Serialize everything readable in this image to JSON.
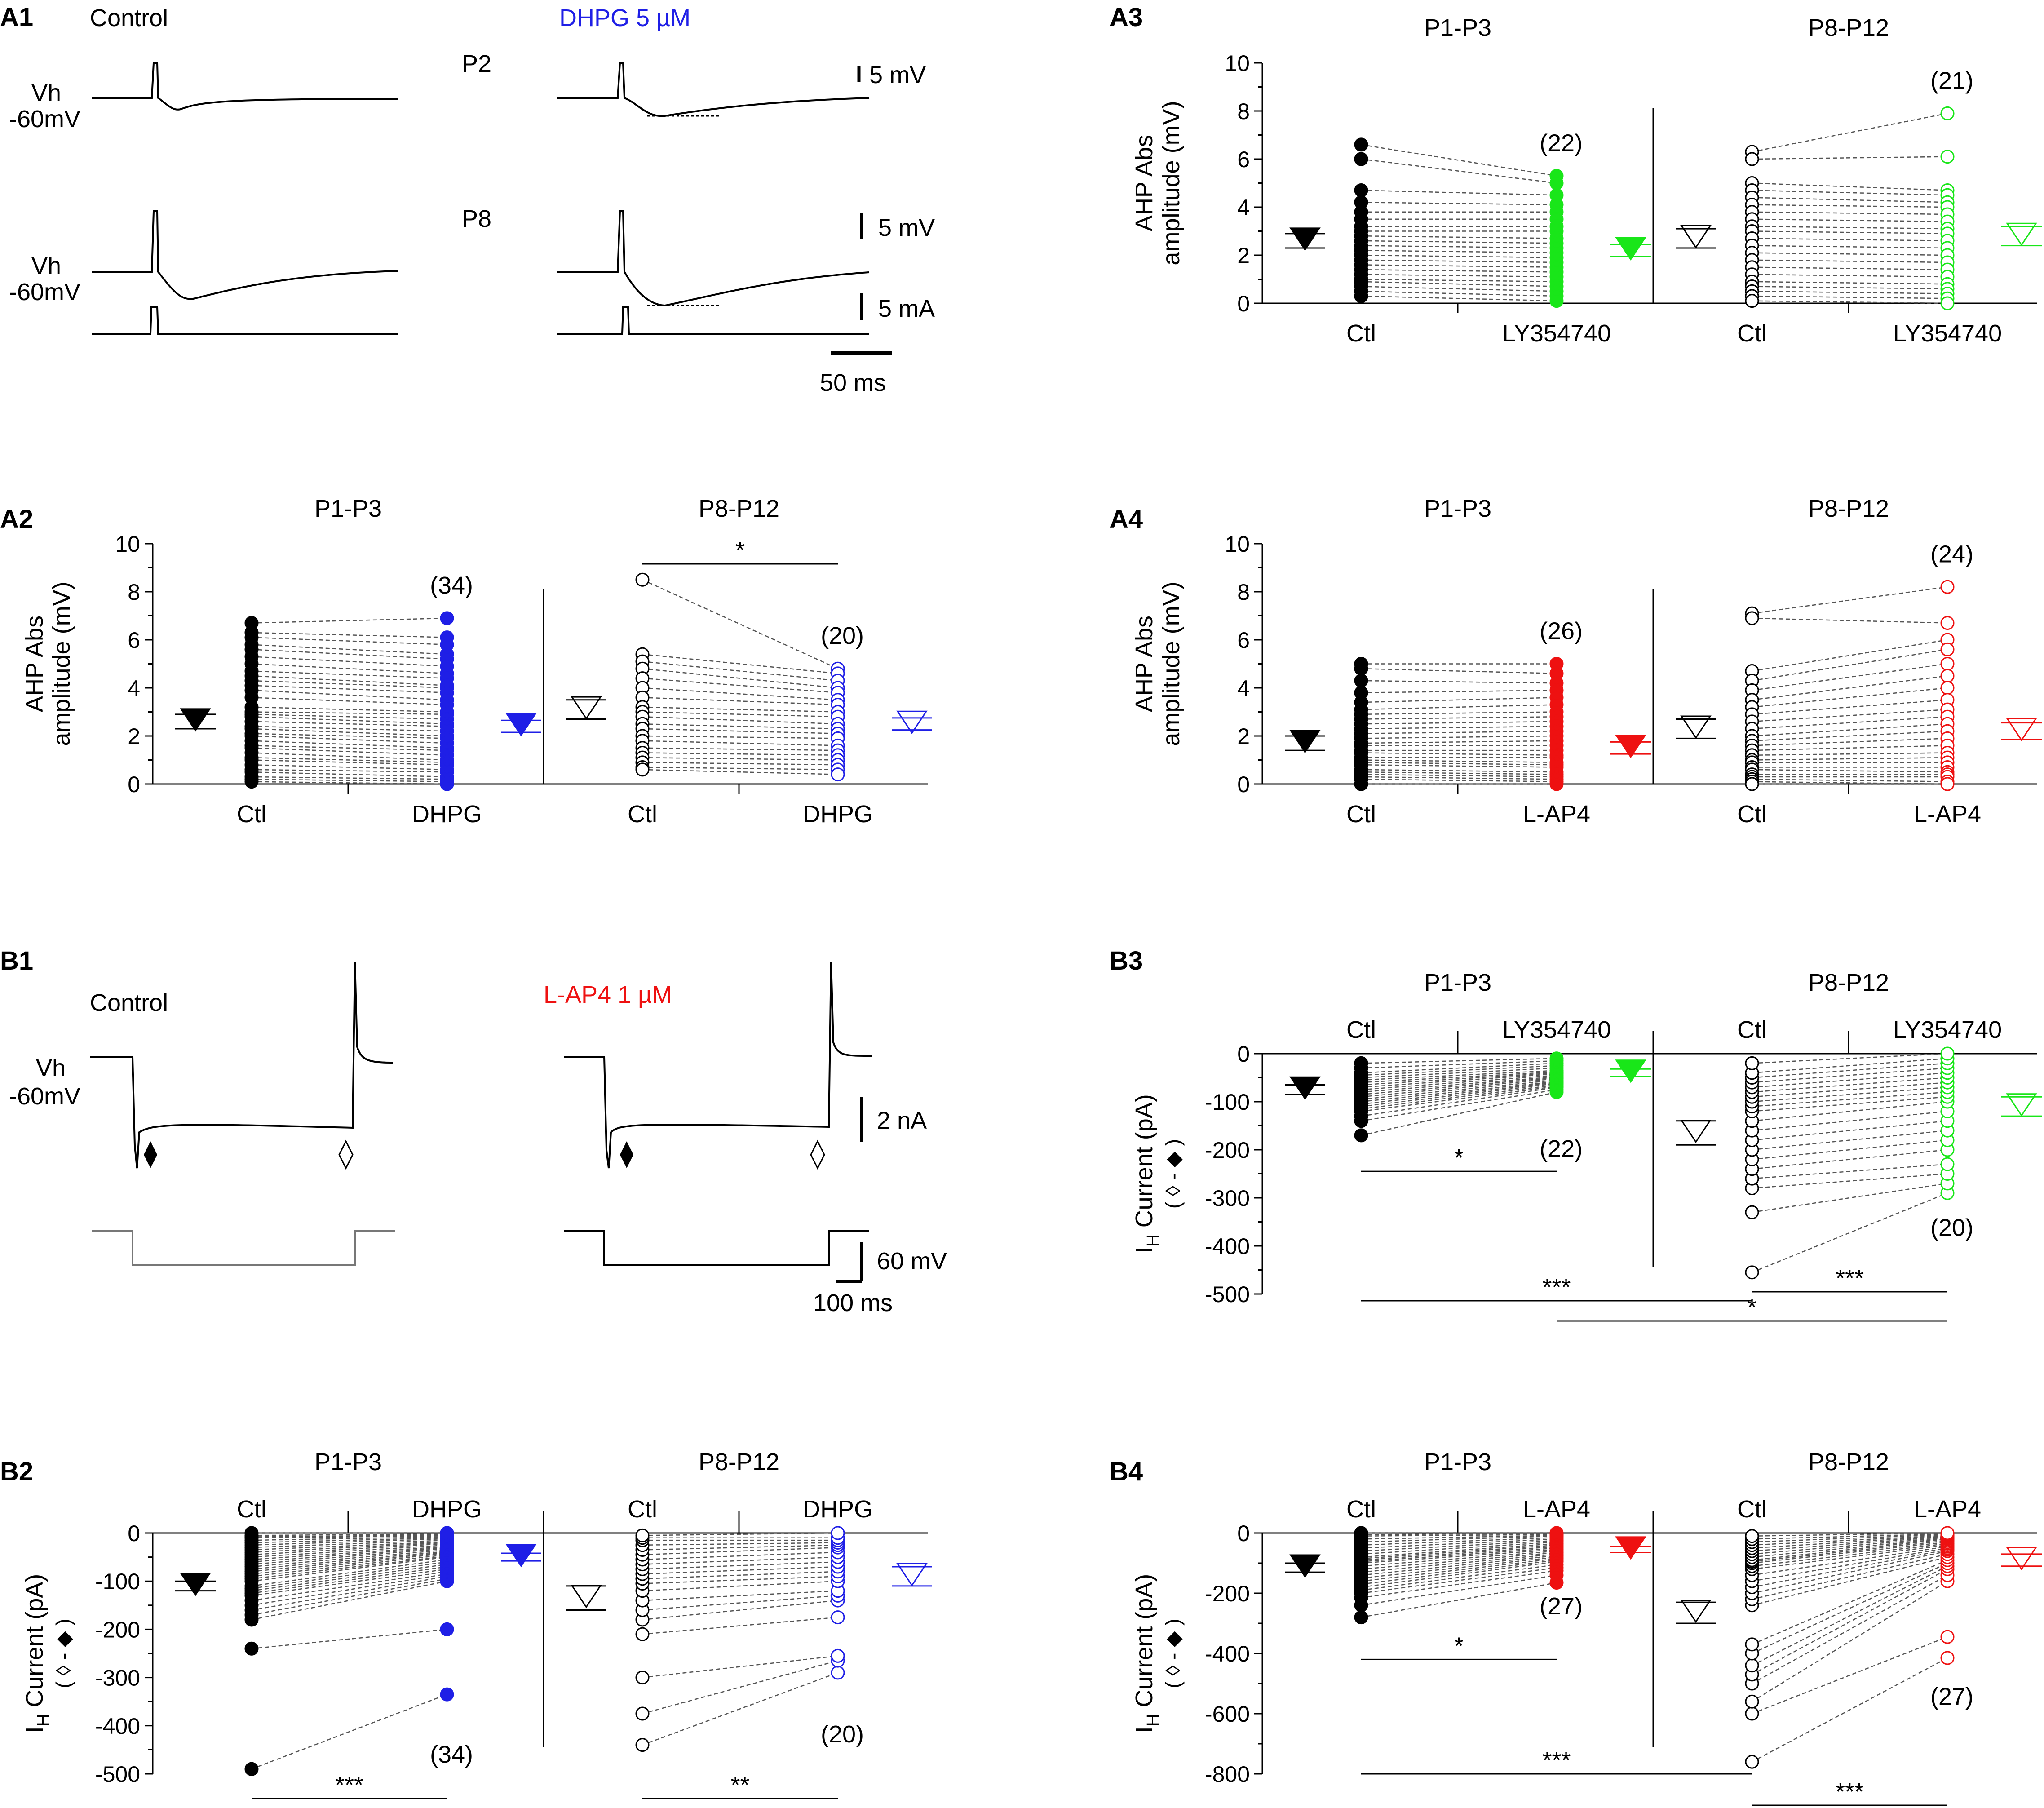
{
  "colors": {
    "black": "#000000",
    "blue": "#1f1fe6",
    "green": "#19e619",
    "red": "#ee1111",
    "dash": "#555555"
  },
  "panels": {
    "A1": {
      "label": "A1",
      "control": "Control",
      "drug": "DHPG 5 µM",
      "p2": "P2",
      "p8": "P8",
      "vh": "Vh",
      "vh2": "-60mV",
      "scale_top": "5 mV",
      "scale_mid": "5 mV",
      "scale_cur": "5 mA",
      "scale_time": "50 ms"
    },
    "B1": {
      "label": "B1",
      "control": "Control",
      "drug": "L-AP4 1 µM",
      "vh": "Vh",
      "vh2": "-60mV",
      "scale_cur": "2 nA",
      "scale_volt": "60 mV",
      "scale_time": "100 ms"
    }
  },
  "chart_data": [
    {
      "id": "A2",
      "type": "scatter",
      "ylabel": "AHP Abs|amplitude (mV)",
      "ylim": [
        0,
        10
      ],
      "yticks": [
        "10",
        "8",
        "6",
        "4",
        "2",
        "0"
      ],
      "groups": [
        {
          "title": "P1-P3",
          "ctl": "Ctl",
          "drug": "DHPG",
          "color": "blue",
          "filled": true,
          "n": "(34)",
          "ctl_mean": 2.6,
          "ctl_sem": 0.3,
          "drug_mean": 2.4,
          "drug_sem": 0.25,
          "ctl_vals": [
            6.7,
            6.3,
            6.1,
            5.8,
            5.6,
            5.3,
            5.0,
            4.7,
            4.5,
            4.3,
            4.1,
            3.9,
            3.6,
            3.2,
            3.0,
            2.9,
            2.8,
            2.6,
            2.4,
            2.3,
            2.1,
            2.0,
            1.8,
            1.6,
            1.5,
            1.3,
            1.1,
            1.0,
            0.8,
            0.6,
            0.5,
            0.3,
            0.2,
            0.1
          ],
          "drug_vals": [
            6.9,
            6.1,
            5.8,
            5.4,
            5.2,
            4.9,
            4.6,
            4.4,
            4.1,
            4.0,
            3.8,
            3.5,
            3.3,
            3.0,
            2.9,
            2.7,
            2.5,
            2.4,
            2.2,
            2.0,
            1.9,
            1.7,
            1.5,
            1.4,
            1.2,
            1.0,
            0.9,
            0.8,
            0.6,
            0.5,
            0.3,
            0.2,
            0.1,
            0.0
          ]
        },
        {
          "title": "P8-P12",
          "ctl": "Ctl",
          "drug": "DHPG",
          "color": "blue",
          "filled": false,
          "n": "(20)",
          "sig": "*",
          "ctl_mean": 3.1,
          "ctl_sem": 0.4,
          "drug_mean": 2.5,
          "drug_sem": 0.25,
          "ctl_vals": [
            8.5,
            5.4,
            5.1,
            4.8,
            4.4,
            4.0,
            3.6,
            3.2,
            3.0,
            2.8,
            2.5,
            2.3,
            2.0,
            1.8,
            1.5,
            1.3,
            1.1,
            0.9,
            0.7,
            0.6
          ],
          "drug_vals": [
            4.8,
            4.6,
            4.3,
            4.0,
            3.8,
            3.5,
            3.3,
            3.0,
            2.8,
            2.5,
            2.3,
            2.1,
            1.9,
            1.6,
            1.4,
            1.2,
            1.0,
            0.8,
            0.6,
            0.4
          ]
        }
      ]
    },
    {
      "id": "A3",
      "type": "scatter",
      "ylabel": "AHP Abs|amplitude (mV)",
      "ylim": [
        0,
        10
      ],
      "yticks": [
        "10",
        "8",
        "6",
        "4",
        "2",
        "0"
      ],
      "groups": [
        {
          "title": "P1-P3",
          "ctl": "Ctl",
          "drug": "LY354740",
          "color": "green",
          "filled": true,
          "n": "(22)",
          "ctl_mean": 2.6,
          "ctl_sem": 0.3,
          "drug_mean": 2.2,
          "drug_sem": 0.25,
          "ctl_vals": [
            6.6,
            6.0,
            4.7,
            4.2,
            3.8,
            3.5,
            3.2,
            3.0,
            2.8,
            2.6,
            2.4,
            2.2,
            2.0,
            1.8,
            1.6,
            1.4,
            1.2,
            1.0,
            0.9,
            0.7,
            0.5,
            0.3
          ],
          "drug_vals": [
            5.3,
            5.0,
            4.5,
            4.1,
            3.8,
            3.5,
            3.2,
            3.0,
            2.7,
            2.5,
            2.3,
            2.1,
            1.9,
            1.7,
            1.5,
            1.3,
            1.1,
            0.9,
            0.7,
            0.5,
            0.3,
            0.1
          ]
        },
        {
          "title": "P8-P12",
          "ctl": "Ctl",
          "drug": "LY354740",
          "color": "green",
          "filled": false,
          "n": "(21)",
          "ctl_mean": 2.7,
          "ctl_sem": 0.4,
          "drug_mean": 2.8,
          "drug_sem": 0.4,
          "ctl_vals": [
            6.3,
            6.0,
            5.0,
            4.7,
            4.4,
            4.1,
            3.8,
            3.5,
            3.2,
            3.0,
            2.7,
            2.4,
            2.1,
            1.8,
            1.5,
            1.2,
            0.9,
            0.7,
            0.5,
            0.3,
            0.1
          ],
          "drug_vals": [
            7.9,
            6.1,
            4.7,
            4.5,
            4.2,
            4.0,
            3.7,
            3.4,
            3.1,
            2.9,
            2.6,
            2.3,
            2.0,
            1.7,
            1.4,
            1.1,
            0.8,
            0.6,
            0.4,
            0.2,
            0.0
          ]
        }
      ]
    },
    {
      "id": "A4",
      "type": "scatter",
      "ylabel": "AHP Abs|amplitude (mV)",
      "ylim": [
        0,
        10
      ],
      "yticks": [
        "10",
        "8",
        "6",
        "4",
        "2",
        "0"
      ],
      "groups": [
        {
          "title": "P1-P3",
          "ctl": "Ctl",
          "drug": "L-AP4",
          "color": "red",
          "filled": true,
          "n": "(26)",
          "ctl_mean": 1.7,
          "ctl_sem": 0.3,
          "drug_mean": 1.5,
          "drug_sem": 0.25,
          "ctl_vals": [
            5.0,
            4.8,
            4.3,
            3.8,
            3.4,
            3.1,
            2.9,
            2.7,
            2.5,
            2.3,
            2.1,
            1.9,
            1.7,
            1.6,
            1.4,
            1.3,
            1.1,
            1.0,
            0.9,
            0.8,
            0.6,
            0.5,
            0.4,
            0.3,
            0.2,
            0.0
          ],
          "drug_vals": [
            5.0,
            4.6,
            4.2,
            3.9,
            3.6,
            3.3,
            3.0,
            2.8,
            2.6,
            2.4,
            2.2,
            2.0,
            1.8,
            1.6,
            1.4,
            1.2,
            1.1,
            0.9,
            0.8,
            0.7,
            0.5,
            0.4,
            0.3,
            0.2,
            0.1,
            0.0
          ]
        },
        {
          "title": "P8-P12",
          "ctl": "Ctl",
          "drug": "L-AP4",
          "color": "red",
          "filled": false,
          "n": "(24)",
          "ctl_mean": 2.3,
          "ctl_sem": 0.4,
          "drug_mean": 2.2,
          "drug_sem": 0.35,
          "ctl_vals": [
            7.1,
            6.9,
            4.7,
            4.3,
            3.9,
            3.5,
            3.2,
            2.9,
            2.6,
            2.3,
            2.0,
            1.8,
            1.6,
            1.4,
            1.2,
            1.0,
            0.9,
            0.7,
            0.6,
            0.4,
            0.3,
            0.2,
            0.1,
            0.0
          ],
          "drug_vals": [
            8.2,
            6.7,
            6.0,
            5.6,
            5.0,
            4.5,
            4.0,
            3.5,
            3.1,
            2.8,
            2.5,
            2.2,
            1.9,
            1.6,
            1.3,
            1.1,
            0.9,
            0.7,
            0.5,
            0.4,
            0.3,
            0.1,
            0.0,
            0.0
          ]
        }
      ]
    },
    {
      "id": "B2",
      "type": "scatter",
      "ylabel": "I|H| Current (pA)",
      "ylabel2": "( ◊ - ◆ )",
      "ylim": [
        -500,
        0
      ],
      "yticks": [
        "0",
        "-100",
        "-200",
        "-300",
        "-400",
        "-500"
      ],
      "sig": [
        {
          "label": "***",
          "group": 0
        },
        {
          "label": "**",
          "group": 1
        }
      ],
      "groups": [
        {
          "title": "P1-P3",
          "ctl": "Ctl",
          "drug": "DHPG",
          "color": "blue",
          "filled": true,
          "n": "(34)",
          "ctl_mean": -110,
          "ctl_sem": 10,
          "drug_mean": -50,
          "drug_sem": 8,
          "ctl_vals": [
            -490,
            -240,
            -180,
            -170,
            -160,
            -150,
            -140,
            -130,
            -125,
            -120,
            -115,
            -110,
            -100,
            -95,
            -90,
            -85,
            -80,
            -75,
            -70,
            -65,
            -60,
            -55,
            -50,
            -45,
            -40,
            -35,
            -30,
            -25,
            -20,
            -15,
            -10,
            -8,
            -5,
            0
          ],
          "drug_vals": [
            -335,
            -200,
            -100,
            -95,
            -90,
            -85,
            -80,
            -75,
            -70,
            -65,
            -60,
            -55,
            -50,
            -48,
            -45,
            -42,
            -40,
            -38,
            -35,
            -32,
            -30,
            -28,
            -25,
            -22,
            -20,
            -18,
            -15,
            -12,
            -10,
            -8,
            -6,
            -4,
            -2,
            0
          ]
        },
        {
          "title": "P8-P12",
          "ctl": "Ctl",
          "drug": "DHPG",
          "color": "blue",
          "filled": false,
          "n": "(20)",
          "ctl_mean": -135,
          "ctl_sem": 25,
          "drug_mean": -90,
          "drug_sem": 20,
          "ctl_vals": [
            -440,
            -375,
            -300,
            -210,
            -180,
            -160,
            -140,
            -120,
            -105,
            -95,
            -85,
            -75,
            -65,
            -55,
            -45,
            -35,
            -25,
            -15,
            -10,
            -5
          ],
          "drug_vals": [
            -290,
            -265,
            -255,
            -175,
            -140,
            -130,
            -120,
            -100,
            -90,
            -80,
            -70,
            -60,
            -50,
            -40,
            -30,
            -25,
            -20,
            -15,
            -10,
            0
          ]
        }
      ]
    },
    {
      "id": "B3",
      "type": "scatter",
      "ylabel": "I|H| Current (pA)",
      "ylabel2": "( ◊ - ◆ )",
      "ylim": [
        -500,
        0
      ],
      "yticks": [
        "0",
        "-100",
        "-200",
        "-300",
        "-400",
        "-500"
      ],
      "sig": [
        {
          "label": "*",
          "from": [
            0,
            "ctl"
          ],
          "to": [
            0,
            "drug"
          ],
          "y": -255
        },
        {
          "label": "***",
          "from": [
            0,
            "ctl"
          ],
          "to": [
            1,
            "ctl"
          ],
          "y": -510
        },
        {
          "label": "***",
          "from": [
            1,
            "ctl"
          ],
          "to": [
            1,
            "drug"
          ],
          "y": -490
        },
        {
          "label": "*",
          "from": [
            0,
            "drug"
          ],
          "to": [
            1,
            "drug"
          ],
          "y": -555
        }
      ],
      "groups": [
        {
          "title": "P1-P3",
          "ctl": "Ctl",
          "drug": "LY354740",
          "color": "green",
          "filled": true,
          "n": "(22)",
          "ctl_mean": -75,
          "ctl_sem": 10,
          "drug_mean": -40,
          "drug_sem": 8,
          "ctl_vals": [
            -170,
            -140,
            -130,
            -120,
            -115,
            -110,
            -105,
            -100,
            -95,
            -90,
            -85,
            -80,
            -75,
            -70,
            -65,
            -60,
            -55,
            -50,
            -45,
            -40,
            -30,
            -20
          ],
          "drug_vals": [
            -80,
            -75,
            -70,
            -68,
            -65,
            -62,
            -60,
            -58,
            -55,
            -52,
            -50,
            -48,
            -45,
            -42,
            -40,
            -38,
            -35,
            -30,
            -25,
            -20,
            -15,
            -10
          ]
        },
        {
          "title": "P8-P12",
          "ctl": "Ctl",
          "drug": "LY354740",
          "color": "green",
          "filled": false,
          "n": "(20)",
          "ctl_mean": -165,
          "ctl_sem": 25,
          "drug_mean": -110,
          "drug_sem": 20,
          "ctl_vals": [
            -455,
            -330,
            -280,
            -260,
            -240,
            -220,
            -200,
            -180,
            -160,
            -140,
            -120,
            -110,
            -100,
            -90,
            -80,
            -70,
            -60,
            -50,
            -40,
            -20
          ],
          "drug_vals": [
            -290,
            -270,
            -250,
            -230,
            -200,
            -180,
            -160,
            -140,
            -120,
            -100,
            -90,
            -80,
            -70,
            -60,
            -50,
            -40,
            -30,
            -20,
            -10,
            0
          ]
        }
      ]
    },
    {
      "id": "B4",
      "type": "scatter",
      "ylabel": "I|H| Current (pA)",
      "ylabel2": "( ◊ - ◆ )",
      "ylim": [
        -800,
        0
      ],
      "yticks": [
        "0",
        "-200",
        "-400",
        "-600",
        "-800"
      ],
      "sig": [
        {
          "label": "*",
          "from": [
            0,
            "ctl"
          ],
          "to": [
            0,
            "drug"
          ],
          "y": -420
        },
        {
          "label": "***",
          "from": [
            0,
            "ctl"
          ],
          "to": [
            1,
            "ctl"
          ],
          "y": -810
        },
        {
          "label": "***",
          "from": [
            1,
            "ctl"
          ],
          "to": [
            1,
            "drug"
          ],
          "y": -900
        }
      ],
      "groups": [
        {
          "title": "P1-P3",
          "ctl": "Ctl",
          "drug": "L-AP4",
          "color": "red",
          "filled": true,
          "n": "(27)",
          "ctl_mean": -115,
          "ctl_sem": 15,
          "drug_mean": -55,
          "drug_sem": 10,
          "ctl_vals": [
            -280,
            -240,
            -215,
            -200,
            -190,
            -180,
            -170,
            -160,
            -150,
            -140,
            -130,
            -120,
            -110,
            -100,
            -95,
            -90,
            -85,
            -80,
            -70,
            -60,
            -50,
            -40,
            -30,
            -20,
            -10,
            -5,
            0
          ],
          "drug_vals": [
            -165,
            -140,
            -125,
            -115,
            -105,
            -95,
            -90,
            -85,
            -80,
            -75,
            -70,
            -65,
            -60,
            -55,
            -50,
            -45,
            -40,
            -35,
            -30,
            -25,
            -20,
            -15,
            -10,
            -8,
            -5,
            -2,
            0
          ]
        },
        {
          "title": "P8-P12",
          "ctl": "Ctl",
          "drug": "L-AP4",
          "color": "red",
          "filled": false,
          "n": "(27)",
          "ctl_mean": -265,
          "ctl_sem": 35,
          "drug_mean": -90,
          "drug_sem": 20,
          "ctl_vals": [
            -760,
            -600,
            -560,
            -500,
            -470,
            -440,
            -400,
            -370,
            -240,
            -220,
            -200,
            -180,
            -160,
            -140,
            -120,
            -110,
            -100,
            -95,
            -90,
            -80,
            -70,
            -60,
            -50,
            -40,
            -30,
            -20,
            -10
          ],
          "drug_vals": [
            -415,
            -345,
            -160,
            -140,
            -120,
            -110,
            -100,
            -90,
            -80,
            -70,
            -60,
            -55,
            -50,
            -45,
            -40,
            -35,
            -30,
            -25,
            -20,
            -18,
            -15,
            -12,
            -10,
            -8,
            -5,
            -3,
            0
          ]
        }
      ]
    }
  ]
}
